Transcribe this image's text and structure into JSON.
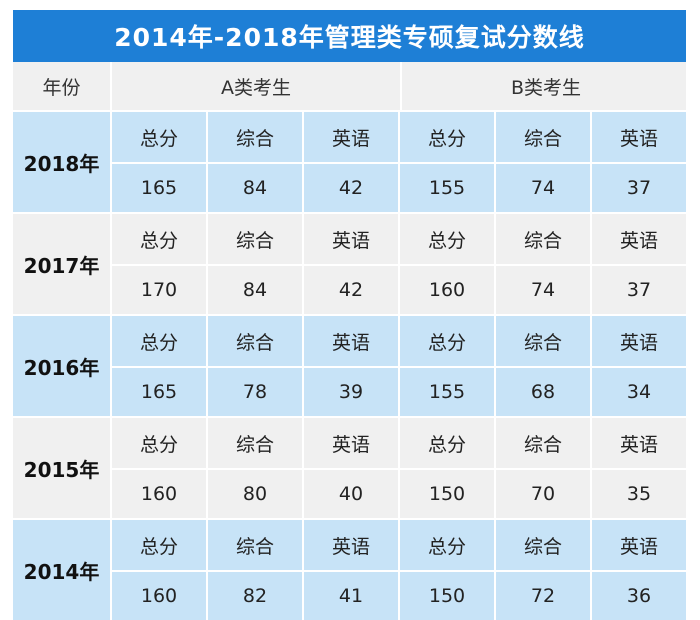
{
  "title": "2014年-2018年管理类专硕复试分数线",
  "header": {
    "year_label": "年份",
    "group_a": "A类考生",
    "group_b": "B类考生"
  },
  "subject_labels": [
    "总分",
    "综合",
    "英语",
    "总分",
    "综合",
    "英语"
  ],
  "rows": [
    {
      "year": "2018年",
      "values": [
        "165",
        "84",
        "42",
        "155",
        "74",
        "37"
      ]
    },
    {
      "year": "2017年",
      "values": [
        "170",
        "84",
        "42",
        "160",
        "74",
        "37"
      ]
    },
    {
      "year": "2016年",
      "values": [
        "165",
        "78",
        "39",
        "155",
        "68",
        "34"
      ]
    },
    {
      "year": "2015年",
      "values": [
        "160",
        "80",
        "40",
        "150",
        "70",
        "35"
      ]
    },
    {
      "year": "2014年",
      "values": [
        "160",
        "82",
        "41",
        "150",
        "72",
        "36"
      ]
    }
  ],
  "colors": {
    "title_bar": "#1e7fd6",
    "row_blue": "#c7e3f7",
    "row_grey": "#f0f0f0"
  }
}
